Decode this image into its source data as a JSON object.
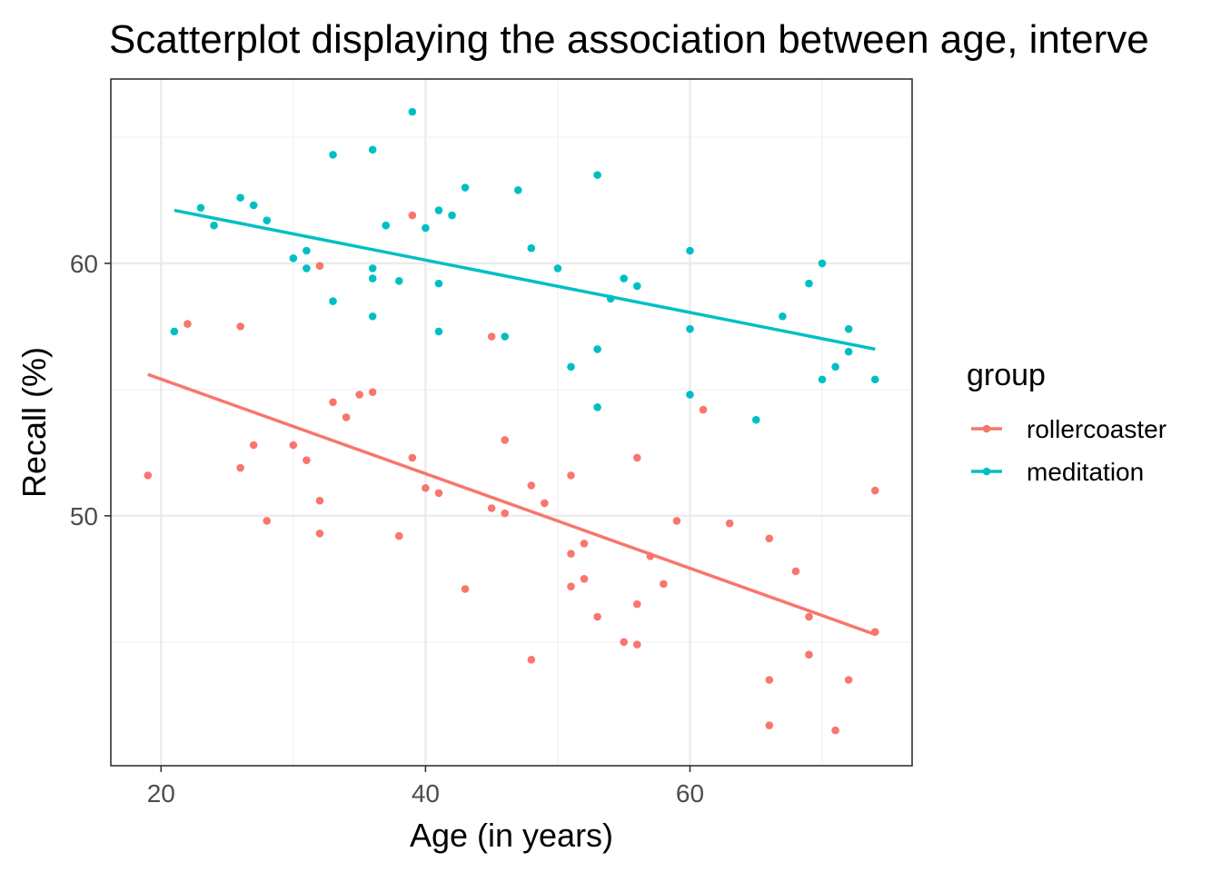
{
  "chart_data": {
    "type": "scatter",
    "title": "Scatterplot displaying the association between age, interve",
    "xlabel": "Age (in years)",
    "ylabel": "Recall (%)",
    "xlim": [
      16.2,
      76.8
    ],
    "ylim": [
      40.1,
      67.3
    ],
    "x_ticks": [
      20,
      40,
      60
    ],
    "y_ticks": [
      50,
      60
    ],
    "x_minor": [
      30,
      50,
      70
    ],
    "y_minor": [
      45,
      55,
      65
    ],
    "grid": true,
    "legend": {
      "title": "group",
      "position": "right"
    },
    "series": [
      {
        "name": "rollercoaster",
        "color": "#F8766D",
        "trend": {
          "x": [
            19,
            74
          ],
          "y": [
            55.6,
            45.3
          ]
        },
        "points": [
          [
            19,
            51.6
          ],
          [
            22,
            57.6
          ],
          [
            26,
            57.5
          ],
          [
            26,
            51.9
          ],
          [
            27,
            52.8
          ],
          [
            28,
            49.8
          ],
          [
            30,
            52.8
          ],
          [
            31,
            52.2
          ],
          [
            32,
            59.9
          ],
          [
            32,
            50.6
          ],
          [
            32,
            49.3
          ],
          [
            33,
            54.5
          ],
          [
            34,
            53.9
          ],
          [
            35,
            54.8
          ],
          [
            36,
            54.9
          ],
          [
            38,
            49.2
          ],
          [
            39,
            61.9
          ],
          [
            39,
            52.3
          ],
          [
            40,
            51.1
          ],
          [
            41,
            50.9
          ],
          [
            43,
            47.1
          ],
          [
            45,
            57.1
          ],
          [
            45,
            50.3
          ],
          [
            46,
            53.0
          ],
          [
            46,
            50.1
          ],
          [
            48,
            51.2
          ],
          [
            48,
            44.3
          ],
          [
            49,
            50.5
          ],
          [
            51,
            51.6
          ],
          [
            51,
            48.5
          ],
          [
            51,
            47.2
          ],
          [
            52,
            48.9
          ],
          [
            52,
            47.5
          ],
          [
            53,
            46.0
          ],
          [
            55,
            45.0
          ],
          [
            56,
            52.3
          ],
          [
            56,
            46.5
          ],
          [
            56,
            44.9
          ],
          [
            57,
            48.4
          ],
          [
            58,
            47.3
          ],
          [
            59,
            49.8
          ],
          [
            61,
            54.2
          ],
          [
            63,
            49.7
          ],
          [
            66,
            49.1
          ],
          [
            66,
            43.5
          ],
          [
            66,
            41.7
          ],
          [
            68,
            47.8
          ],
          [
            69,
            46.0
          ],
          [
            69,
            44.5
          ],
          [
            71,
            41.5
          ],
          [
            72,
            43.5
          ],
          [
            74,
            51.0
          ],
          [
            74,
            45.4
          ]
        ]
      },
      {
        "name": "meditation",
        "color": "#00BFC4",
        "trend": {
          "x": [
            21,
            74
          ],
          "y": [
            62.1,
            56.6
          ]
        },
        "points": [
          [
            21,
            57.3
          ],
          [
            23,
            62.2
          ],
          [
            24,
            61.5
          ],
          [
            26,
            62.6
          ],
          [
            27,
            62.3
          ],
          [
            28,
            61.7
          ],
          [
            30,
            60.2
          ],
          [
            31,
            60.5
          ],
          [
            31,
            59.8
          ],
          [
            33,
            64.3
          ],
          [
            33,
            58.5
          ],
          [
            36,
            64.5
          ],
          [
            36,
            59.8
          ],
          [
            36,
            59.4
          ],
          [
            36,
            57.9
          ],
          [
            37,
            61.5
          ],
          [
            38,
            59.3
          ],
          [
            39,
            66.0
          ],
          [
            40,
            61.4
          ],
          [
            41,
            62.1
          ],
          [
            41,
            59.2
          ],
          [
            41,
            57.3
          ],
          [
            42,
            61.9
          ],
          [
            43,
            63.0
          ],
          [
            46,
            57.1
          ],
          [
            47,
            62.9
          ],
          [
            48,
            60.6
          ],
          [
            50,
            59.8
          ],
          [
            51,
            55.9
          ],
          [
            53,
            63.5
          ],
          [
            53,
            56.6
          ],
          [
            53,
            54.3
          ],
          [
            54,
            58.6
          ],
          [
            55,
            59.4
          ],
          [
            56,
            59.1
          ],
          [
            60,
            60.5
          ],
          [
            60,
            57.4
          ],
          [
            60,
            54.8
          ],
          [
            65,
            53.8
          ],
          [
            67,
            57.9
          ],
          [
            69,
            59.2
          ],
          [
            70,
            60.0
          ],
          [
            70,
            55.4
          ],
          [
            71,
            55.9
          ],
          [
            72,
            57.4
          ],
          [
            72,
            56.5
          ],
          [
            74,
            55.4
          ]
        ]
      }
    ]
  }
}
